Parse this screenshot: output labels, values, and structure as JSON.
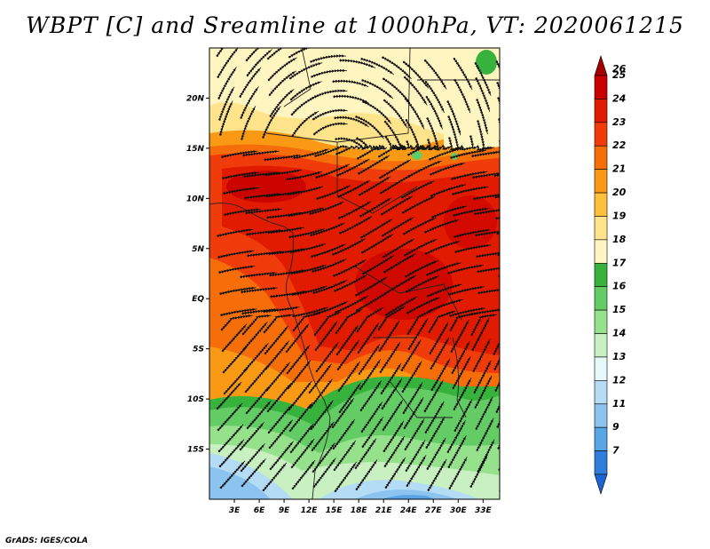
{
  "title": "WBPT [C] and Sreamline at 1000hPa, VT: 2020061215",
  "footer": "GrADS: IGES/COLA",
  "map": {
    "lon_range": [
      0,
      35
    ],
    "lat_range": [
      -20,
      25
    ],
    "lat_ticks": [
      {
        "label": "20N",
        "value": 20
      },
      {
        "label": "15N",
        "value": 15
      },
      {
        "label": "10N",
        "value": 10
      },
      {
        "label": "5N",
        "value": 5
      },
      {
        "label": "EQ",
        "value": 0
      },
      {
        "label": "5S",
        "value": -5
      },
      {
        "label": "10S",
        "value": -10
      },
      {
        "label": "15S",
        "value": -15
      }
    ],
    "lon_ticks": [
      {
        "label": "3E",
        "value": 3
      },
      {
        "label": "6E",
        "value": 6
      },
      {
        "label": "9E",
        "value": 9
      },
      {
        "label": "12E",
        "value": 12
      },
      {
        "label": "15E",
        "value": 15
      },
      {
        "label": "18E",
        "value": 18
      },
      {
        "label": "21E",
        "value": 21
      },
      {
        "label": "24E",
        "value": 24
      },
      {
        "label": "27E",
        "value": 27
      },
      {
        "label": "30E",
        "value": 30
      },
      {
        "label": "33E",
        "value": 33
      }
    ]
  },
  "colorbar": {
    "levels": [
      {
        "label": "26",
        "color": "#a50000"
      },
      {
        "label": "25",
        "color": "#c80000"
      },
      {
        "label": "24",
        "color": "#e11b00"
      },
      {
        "label": "23",
        "color": "#f03c0a"
      },
      {
        "label": "22",
        "color": "#f56e0a"
      },
      {
        "label": "21",
        "color": "#fa9a14"
      },
      {
        "label": "20",
        "color": "#fdc03c"
      },
      {
        "label": "19",
        "color": "#ffe48c"
      },
      {
        "label": "18",
        "color": "#fff5c0"
      },
      {
        "label": "17",
        "color": "#37b23c"
      },
      {
        "label": "16",
        "color": "#64cc64"
      },
      {
        "label": "15",
        "color": "#96e18c"
      },
      {
        "label": "14",
        "color": "#c8f0c0"
      },
      {
        "label": "13",
        "color": "#e6f8f8"
      },
      {
        "label": "12",
        "color": "#b4dcf5"
      },
      {
        "label": "11",
        "color": "#8cc3ef"
      },
      {
        "label": "9",
        "color": "#5aa5e6"
      },
      {
        "label": "7",
        "color": "#2f7edc"
      }
    ],
    "bottom_color": "#1e64d2"
  },
  "chart_data": {
    "type": "heatmap",
    "variable": "WBPT [C]",
    "level": "1000hPa",
    "valid_time": "2020061215",
    "x_range": [
      0,
      35
    ],
    "y_range": [
      -20,
      25
    ],
    "value_range": [
      7,
      26
    ]
  }
}
